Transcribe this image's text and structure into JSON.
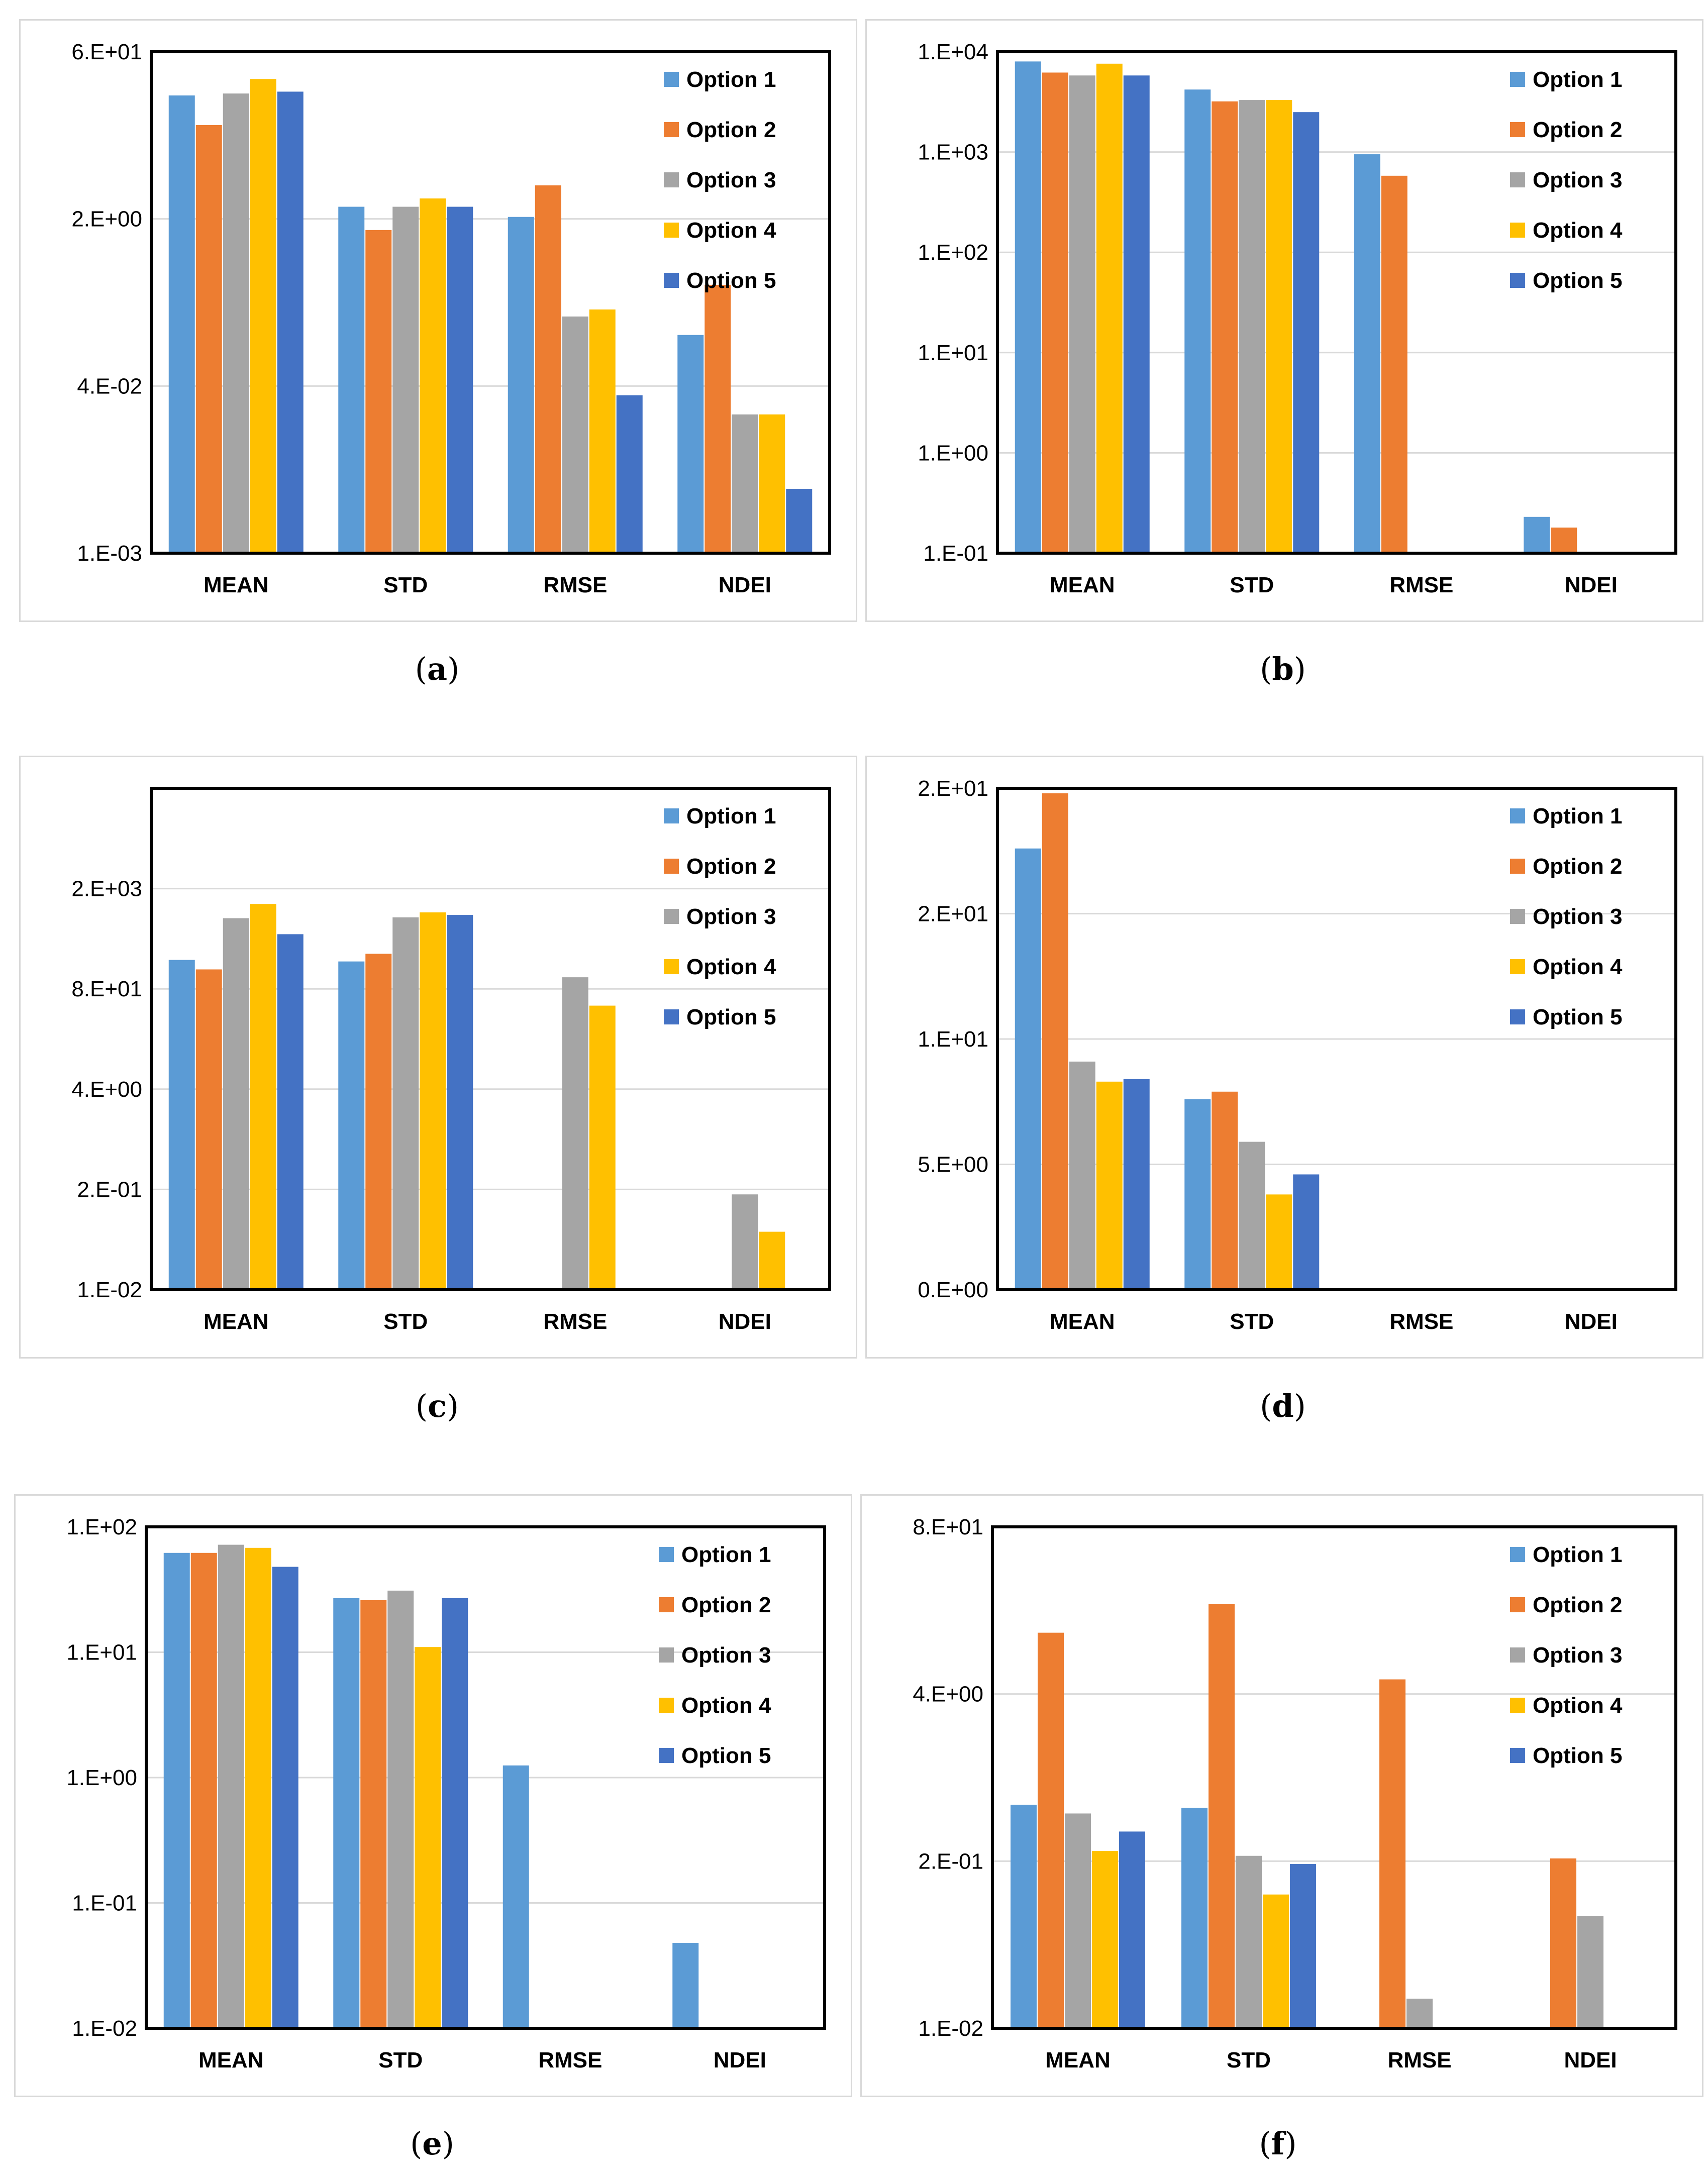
{
  "colors": {
    "option1": "#5b9bd5",
    "option2": "#ed7d31",
    "option3": "#a5a5a5",
    "option4": "#ffc000",
    "option5": "#4472c4"
  },
  "chart_data": [
    {
      "id": "a",
      "type": "bar",
      "scale": "log",
      "caption": "a",
      "categories": [
        "MEAN",
        "STD",
        "RMSE",
        "NDEI"
      ],
      "yticks": [
        "1.E-03",
        "4.E-02",
        "2.E+00",
        "6.E+01"
      ],
      "ylim": [
        0.001,
        60
      ],
      "series": [
        {
          "name": "Option 1",
          "values": [
            23,
            2.0,
            1.6,
            0.12
          ]
        },
        {
          "name": "Option 2",
          "values": [
            12,
            1.2,
            3.2,
            0.36
          ]
        },
        {
          "name": "Option 3",
          "values": [
            24,
            2.0,
            0.18,
            0.021
          ]
        },
        {
          "name": "Option 4",
          "values": [
            33,
            2.4,
            0.21,
            0.021
          ]
        },
        {
          "name": "Option 5",
          "values": [
            25,
            2.0,
            0.032,
            0.0041
          ]
        }
      ]
    },
    {
      "id": "b",
      "type": "bar",
      "scale": "log",
      "caption": "b",
      "categories": [
        "MEAN",
        "STD",
        "RMSE",
        "NDEI"
      ],
      "yticks": [
        "1.E-01",
        "1.E+00",
        "1.E+01",
        "1.E+02",
        "1.E+03",
        "1.E+04"
      ],
      "ylim": [
        0.1,
        10000
      ],
      "series": [
        {
          "name": "Option 1",
          "values": [
            8000,
            4200,
            950,
            0.23
          ]
        },
        {
          "name": "Option 2",
          "values": [
            6200,
            3200,
            580,
            0.18
          ]
        },
        {
          "name": "Option 3",
          "values": [
            5800,
            3300,
            null,
            null
          ]
        },
        {
          "name": "Option 4",
          "values": [
            7600,
            3300,
            null,
            null
          ]
        },
        {
          "name": "Option 5",
          "values": [
            5800,
            2500,
            null,
            null
          ]
        }
      ]
    },
    {
      "id": "c",
      "type": "bar",
      "scale": "log",
      "caption": "c",
      "categories": [
        "MEAN",
        "STD",
        "RMSE",
        "NDEI"
      ],
      "yticks": [
        "1.E-02",
        "2.E-01",
        "4.E+00",
        "8.E+01",
        "2.E+03"
      ],
      "ylim": [
        0.01,
        40000
      ],
      "series": [
        {
          "name": "Option 1",
          "values": [
            220,
            210,
            null,
            null
          ]
        },
        {
          "name": "Option 2",
          "values": [
            165,
            265,
            null,
            null
          ]
        },
        {
          "name": "Option 3",
          "values": [
            780,
            800,
            130,
            0.18
          ]
        },
        {
          "name": "Option 4",
          "values": [
            1200,
            930,
            55,
            0.058
          ]
        },
        {
          "name": "Option 5",
          "values": [
            480,
            860,
            null,
            null
          ]
        }
      ]
    },
    {
      "id": "d",
      "type": "bar",
      "scale": "linear",
      "caption": "d",
      "categories": [
        "MEAN",
        "STD",
        "RMSE",
        "NDEI"
      ],
      "yticks": [
        "0.E+00",
        "5.E+00",
        "1.E+01",
        "2.E+01",
        "2.E+01"
      ],
      "ylim": [
        0,
        20
      ],
      "series": [
        {
          "name": "Option 1",
          "values": [
            17.6,
            7.6,
            null,
            null
          ]
        },
        {
          "name": "Option 2",
          "values": [
            19.8,
            7.9,
            null,
            null
          ]
        },
        {
          "name": "Option 3",
          "values": [
            9.1,
            5.9,
            null,
            null
          ]
        },
        {
          "name": "Option 4",
          "values": [
            8.3,
            3.8,
            null,
            null
          ]
        },
        {
          "name": "Option 5",
          "values": [
            8.4,
            4.6,
            null,
            null
          ]
        }
      ]
    },
    {
      "id": "e",
      "type": "bar",
      "scale": "log",
      "caption": "e",
      "categories": [
        "MEAN",
        "STD",
        "RMSE",
        "NDEI"
      ],
      "yticks": [
        "1.E-02",
        "1.E-01",
        "1.E+00",
        "1.E+01",
        "1.E+02"
      ],
      "ylim": [
        0.01,
        100
      ],
      "series": [
        {
          "name": "Option 1",
          "values": [
            62,
            27,
            1.25,
            0.048
          ]
        },
        {
          "name": "Option 2",
          "values": [
            62,
            26,
            null,
            null
          ]
        },
        {
          "name": "Option 3",
          "values": [
            72,
            31,
            null,
            null
          ]
        },
        {
          "name": "Option 4",
          "values": [
            68,
            11,
            null,
            null
          ]
        },
        {
          "name": "Option 5",
          "values": [
            48,
            27,
            null,
            null
          ]
        }
      ]
    },
    {
      "id": "f",
      "type": "bar",
      "scale": "log",
      "caption": "f",
      "categories": [
        "MEAN",
        "STD",
        "RMSE",
        "NDEI"
      ],
      "yticks": [
        "1.E-02",
        "2.E-01",
        "4.E+00",
        "8.E+01"
      ],
      "ylim": [
        0.01,
        80
      ],
      "series": [
        {
          "name": "Option 1",
          "values": [
            0.55,
            0.52,
            null,
            null
          ]
        },
        {
          "name": "Option 2",
          "values": [
            12,
            20,
            5.2,
            0.21
          ]
        },
        {
          "name": "Option 3",
          "values": [
            0.47,
            0.22,
            0.017,
            0.075
          ]
        },
        {
          "name": "Option 4",
          "values": [
            0.24,
            0.11,
            null,
            null
          ]
        },
        {
          "name": "Option 5",
          "values": [
            0.34,
            0.19,
            null,
            null
          ]
        }
      ]
    }
  ]
}
